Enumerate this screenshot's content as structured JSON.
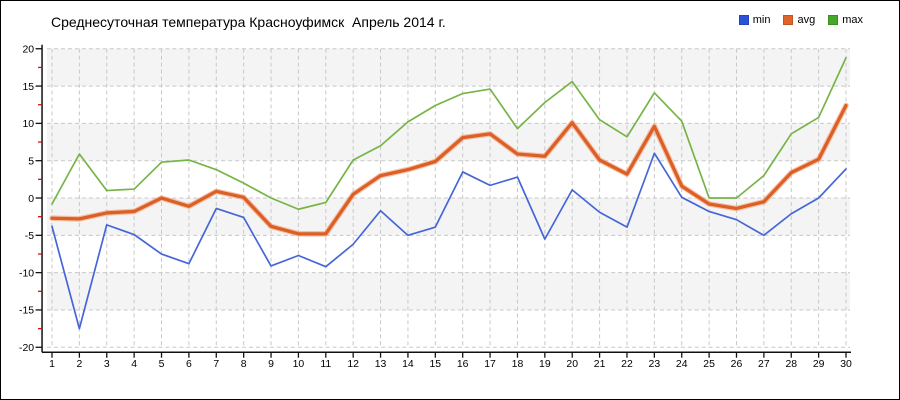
{
  "legend": {
    "items": [
      {
        "label": "min",
        "color": "#2B50D9"
      },
      {
        "label": "avg",
        "color": "#E2622B"
      },
      {
        "label": "max",
        "color": "#45A829"
      }
    ]
  },
  "chart_data": {
    "type": "line",
    "title": "Среднесуточная температура Красноуфимск  Апрель 2014 г.",
    "xlabel": "",
    "ylabel": "",
    "x": [
      1,
      2,
      3,
      4,
      5,
      6,
      7,
      8,
      9,
      10,
      11,
      12,
      13,
      14,
      15,
      16,
      17,
      18,
      19,
      20,
      21,
      22,
      23,
      24,
      25,
      26,
      27,
      28,
      29,
      30
    ],
    "series": [
      {
        "name": "min",
        "color": "#4566D8",
        "halo": null,
        "values": [
          -3.8,
          -17.5,
          -3.6,
          -4.9,
          -7.5,
          -8.8,
          -1.4,
          -2.6,
          -9.1,
          -7.7,
          -9.2,
          -6.2,
          -1.7,
          -5.0,
          -3.9,
          3.5,
          1.7,
          2.8,
          -5.5,
          1.1,
          -1.9,
          -3.9,
          6.0,
          0.1,
          -1.8,
          -2.9,
          -5.0,
          -2.1,
          0.0,
          3.9
        ]
      },
      {
        "name": "avg",
        "color": "#DC5F26",
        "halo": "#F2A47E",
        "values": [
          -2.7,
          -2.8,
          -2.0,
          -1.8,
          0.0,
          -1.1,
          0.9,
          0.1,
          -3.8,
          -4.8,
          -4.8,
          0.5,
          3.0,
          3.8,
          4.9,
          8.1,
          8.6,
          5.9,
          5.6,
          10.1,
          5.1,
          3.2,
          9.6,
          1.6,
          -0.8,
          -1.4,
          -0.5,
          3.4,
          5.2,
          12.4
        ]
      },
      {
        "name": "max",
        "color": "#76B446",
        "halo": null,
        "values": [
          -0.8,
          5.9,
          1.0,
          1.2,
          4.8,
          5.1,
          3.8,
          2.0,
          0.0,
          -1.5,
          -0.6,
          5.1,
          7.0,
          10.2,
          12.4,
          14.0,
          14.6,
          9.3,
          12.8,
          15.6,
          10.5,
          8.2,
          14.1,
          10.3,
          0.0,
          0.0,
          3.0,
          8.6,
          10.8,
          18.8
        ]
      }
    ],
    "ylim": [
      -20,
      20
    ],
    "yticks": [
      20,
      15,
      10,
      5,
      0,
      -5,
      -10,
      -15,
      -20
    ],
    "yminor_step": 2.5,
    "grid": "dashed horizontal and vertical",
    "plot_bands": "alternating light-gray / white horizontal bands every 5 units",
    "legend_position": "top-right",
    "colors": {
      "band": "#F4F4F4",
      "gridline": "#C8C8C8",
      "axis": "#111111",
      "minor_tick": "#CC1100"
    }
  }
}
